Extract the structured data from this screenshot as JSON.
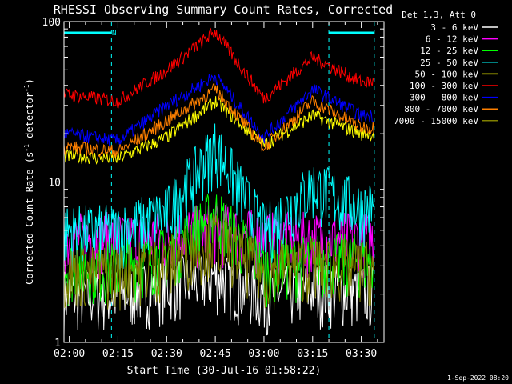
{
  "chart_data": {
    "type": "line",
    "title": "RHESSI Observing Summary Count Rates, Corrected",
    "xlabel": "Start Time (30-Jul-16 01:58:22)",
    "ylabel_main": "Corrected Count Rate (s",
    "ylabel_exp1": "-1",
    "ylabel_mid": " detector",
    "ylabel_exp2": "-1",
    "ylabel_end": ")",
    "y_scale": "log",
    "ylim": [
      1,
      100
    ],
    "xlim": [
      "01:58:22",
      "03:37:00"
    ],
    "x_tick_labels": [
      "02:00",
      "02:15",
      "02:30",
      "02:45",
      "03:00",
      "03:15",
      "03:30"
    ],
    "y_tick_labels": [
      "1",
      "10",
      "100"
    ],
    "legend_header": "Det 1,3, Att 0",
    "legend_placement": "right",
    "footer_date": "1-Sep-2022 08:20",
    "annotation_marker": "N",
    "night_intervals": [
      [
        "01:58:22",
        "02:13:00"
      ],
      [
        "03:20:00",
        "03:34:00"
      ]
    ],
    "series": [
      {
        "name": "3 - 6 keV",
        "color": "#ffffff",
        "x": [
          "02:00",
          "02:15",
          "02:30",
          "02:45",
          "03:00",
          "03:15",
          "03:30"
        ],
        "values": [
          2.0,
          2.0,
          2.3,
          2.6,
          2.0,
          2.2,
          2.1
        ]
      },
      {
        "name": "6 - 12 keV",
        "color": "#ff00ff",
        "x": [
          "02:00",
          "02:15",
          "02:30",
          "02:45",
          "03:00",
          "03:15",
          "03:30"
        ],
        "values": [
          4.5,
          4.5,
          4.6,
          5.2,
          4.5,
          4.5,
          4.5
        ]
      },
      {
        "name": "12 - 25 keV",
        "color": "#00ff00",
        "x": [
          "02:00",
          "02:15",
          "02:30",
          "02:45",
          "03:00",
          "03:15",
          "03:30"
        ],
        "values": [
          3.0,
          3.0,
          3.6,
          6.5,
          3.0,
          3.3,
          3.3
        ]
      },
      {
        "name": "25 - 50 keV",
        "color": "#00ffff",
        "x": [
          "02:00",
          "02:15",
          "02:30",
          "02:45",
          "03:00",
          "03:15",
          "03:30"
        ],
        "values": [
          5.0,
          5.0,
          6.5,
          17.0,
          5.0,
          9.5,
          7.0
        ]
      },
      {
        "name": "50 - 100 keV",
        "color": "#ffff00",
        "x": [
          "02:00",
          "02:15",
          "02:30",
          "02:45",
          "03:00",
          "03:15",
          "03:30"
        ],
        "values": [
          14.5,
          14.0,
          19.0,
          32.0,
          17.0,
          26.0,
          20.0
        ]
      },
      {
        "name": "100 - 300 keV",
        "color": "#ff0000",
        "x": [
          "02:00",
          "02:15",
          "02:30",
          "02:45",
          "03:00",
          "03:15",
          "03:30"
        ],
        "values": [
          35.0,
          32.0,
          50.0,
          87.0,
          33.0,
          60.0,
          42.0
        ]
      },
      {
        "name": "300 - 800 keV",
        "color": "#0000ff",
        "x": [
          "02:00",
          "02:15",
          "02:30",
          "02:45",
          "03:00",
          "03:15",
          "03:30"
        ],
        "values": [
          20.0,
          18.0,
          30.0,
          46.0,
          19.0,
          38.0,
          26.0
        ]
      },
      {
        "name": "800 - 7000 keV",
        "color": "#ff8000",
        "x": [
          "02:00",
          "02:15",
          "02:30",
          "02:45",
          "03:00",
          "03:15",
          "03:30"
        ],
        "values": [
          16.5,
          15.5,
          24.0,
          38.0,
          16.5,
          32.0,
          22.0
        ]
      },
      {
        "name": "7000 - 15000 keV",
        "color": "#808000",
        "x": [
          "02:00",
          "02:15",
          "02:30",
          "02:45",
          "03:00",
          "03:15",
          "03:30"
        ],
        "values": [
          2.8,
          2.8,
          3.2,
          4.6,
          2.8,
          3.2,
          3.0
        ]
      }
    ]
  }
}
